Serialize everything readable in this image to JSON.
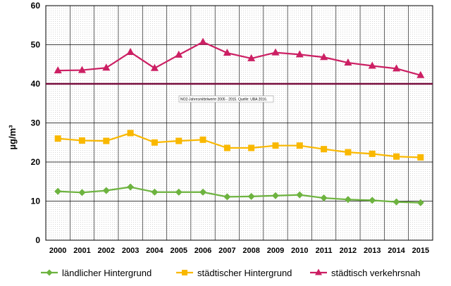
{
  "chart_data": {
    "type": "line",
    "ylabel": "µg/m³",
    "ylim": [
      0,
      60
    ],
    "yticks": [
      0,
      10,
      20,
      30,
      40,
      50,
      60
    ],
    "categories": [
      "2000",
      "2001",
      "2002",
      "2003",
      "2004",
      "2005",
      "2006",
      "2007",
      "2008",
      "2009",
      "2010",
      "2011",
      "2012",
      "2013",
      "2014",
      "2015"
    ],
    "grid": true,
    "legend_position": "bottom",
    "series": [
      {
        "name": "ländlicher Hintergrund",
        "color": "#6db33f",
        "marker": "diamond",
        "values": [
          12.5,
          12.2,
          12.7,
          13.6,
          12.3,
          12.3,
          12.3,
          11.1,
          11.2,
          11.4,
          11.6,
          10.8,
          10.4,
          10.2,
          9.8,
          9.6
        ]
      },
      {
        "name": "städtischer Hintergrund",
        "color": "#f9b800",
        "marker": "square",
        "values": [
          26.0,
          25.5,
          25.4,
          27.4,
          25.0,
          25.4,
          25.7,
          23.6,
          23.6,
          24.2,
          24.2,
          23.3,
          22.5,
          22.1,
          21.4,
          21.2
        ]
      },
      {
        "name": "städtisch verkehrsnah",
        "color": "#cc1f63",
        "marker": "triangle",
        "values": [
          43.4,
          43.5,
          44.1,
          48.1,
          44.0,
          47.4,
          50.7,
          47.9,
          46.5,
          48.0,
          47.5,
          46.8,
          45.4,
          44.6,
          43.9,
          42.2
        ]
      }
    ],
    "reference_line": {
      "value": 40,
      "color": "#7a1040"
    },
    "annotation": {
      "text": "NO2-Jahresmittelwerte 2005 - 2015. Quelle: UBA 2016."
    }
  }
}
